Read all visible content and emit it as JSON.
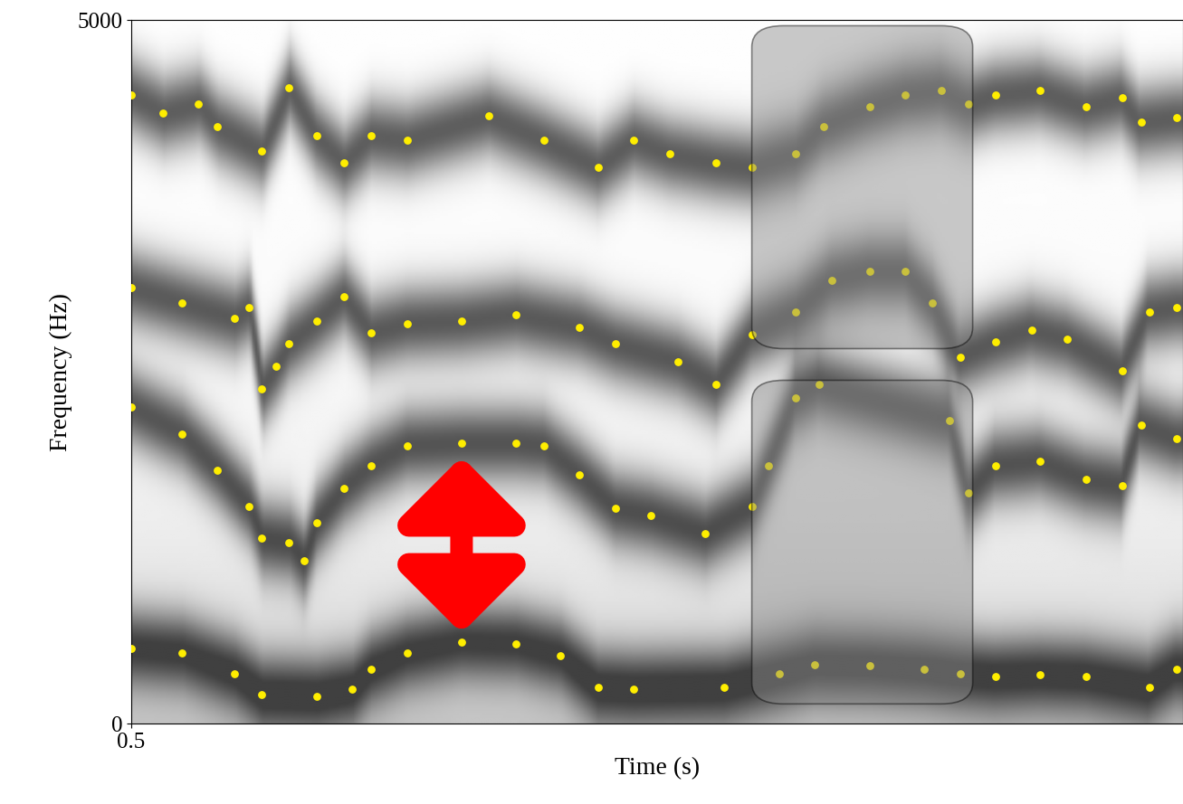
{
  "chart_data": {
    "type": "scatter",
    "xlabel": "Time (s)",
    "ylabel": "Frequency (Hz)",
    "xlim": [
      0.5,
      1.0
    ],
    "xticks": [
      0.5
    ],
    "ylim": [
      0,
      5000
    ],
    "yticks": [
      0,
      5000
    ],
    "series": [
      {
        "color": "#ffee00",
        "marker": "o",
        "x": [
          0.5,
          0.524,
          0.549,
          0.562,
          0.588,
          0.605,
          0.614,
          0.631,
          0.657,
          0.683,
          0.704,
          0.722,
          0.739,
          0.782,
          0.808,
          0.825,
          0.851,
          0.877,
          0.894,
          0.911,
          0.932,
          0.954,
          0.984,
          0.997
        ],
        "values": [
          533,
          501,
          353,
          206,
          193,
          244,
          386,
          501,
          578,
          565,
          482,
          257,
          244,
          257,
          353,
          418,
          411,
          386,
          353,
          334,
          347,
          334,
          257,
          386
        ]
      },
      {
        "color": "#ffee00",
        "marker": "o",
        "x": [
          0.5,
          0.524,
          0.541,
          0.556,
          0.562,
          0.575,
          0.582,
          0.588,
          0.601,
          0.614,
          0.631,
          0.657,
          0.683,
          0.696,
          0.713,
          0.73,
          0.747,
          0.773,
          0.795,
          0.803,
          0.816,
          0.827,
          0.889,
          0.898,
          0.911,
          0.932,
          0.954,
          0.971,
          0.98,
          0.997
        ],
        "values": [
          2249,
          2057,
          1800,
          1542,
          1317,
          1285,
          1157,
          1427,
          1671,
          1832,
          1973,
          1992,
          1992,
          1973,
          1767,
          1530,
          1478,
          1350,
          1542,
          1832,
          2314,
          2410,
          2153,
          1639,
          1832,
          1864,
          1735,
          1690,
          2121,
          2024
        ]
      },
      {
        "color": "#ffee00",
        "marker": "o",
        "x": [
          0.5,
          0.524,
          0.549,
          0.556,
          0.562,
          0.569,
          0.575,
          0.588,
          0.601,
          0.614,
          0.631,
          0.657,
          0.683,
          0.713,
          0.73,
          0.76,
          0.778,
          0.795,
          0.816,
          0.833,
          0.851,
          0.868,
          0.881,
          0.894,
          0.911,
          0.928,
          0.945,
          0.971,
          0.984,
          0.997
        ],
        "values": [
          3098,
          2989,
          2879,
          2956,
          2378,
          2539,
          2699,
          2860,
          3034,
          2776,
          2841,
          2860,
          2905,
          2815,
          2699,
          2571,
          2410,
          2764,
          2924,
          3149,
          3213,
          3213,
          2989,
          2603,
          2712,
          2796,
          2731,
          2506,
          2924,
          2956
        ]
      },
      {
        "color": "#ffee00",
        "marker": "o",
        "x": [
          0.5,
          0.515,
          0.532,
          0.541,
          0.562,
          0.575,
          0.588,
          0.601,
          0.614,
          0.631,
          0.67,
          0.696,
          0.722,
          0.739,
          0.756,
          0.778,
          0.795,
          0.816,
          0.829,
          0.851,
          0.868,
          0.885,
          0.898,
          0.911,
          0.932,
          0.954,
          0.971,
          0.98,
          0.997
        ],
        "values": [
          4467,
          4339,
          4403,
          4242,
          4068,
          4518,
          4178,
          3985,
          4178,
          4146,
          4319,
          4146,
          3953,
          4146,
          4049,
          3985,
          3953,
          4049,
          4242,
          4383,
          4467,
          4499,
          4403,
          4467,
          4499,
          4383,
          4448,
          4274,
          4306
        ]
      }
    ]
  }
}
